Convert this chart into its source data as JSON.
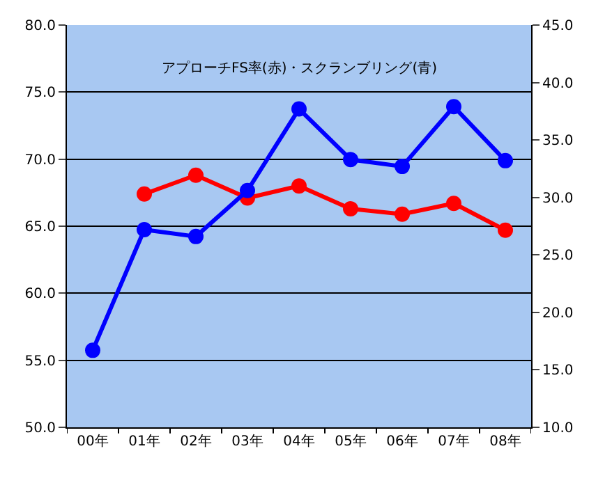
{
  "chart_data": {
    "type": "line",
    "title": "アプローチFS率(赤)・スクランブリング(青)",
    "categories": [
      "00年",
      "01年",
      "02年",
      "03年",
      "04年",
      "05年",
      "06年",
      "07年",
      "08年"
    ],
    "series": [
      {
        "color": "#ff0000",
        "values": [
          null,
          67.4,
          68.8,
          67.1,
          68.0,
          66.3,
          65.9,
          66.7,
          64.7
        ]
      },
      {
        "color": "#0000ff",
        "axis": "y2",
        "values": [
          16.7,
          27.2,
          26.6,
          30.6,
          37.7,
          33.3,
          32.7,
          37.9,
          33.2
        ]
      }
    ],
    "ylim": [
      50,
      80
    ],
    "yticks": [
      {
        "value": 50,
        "label": "50.0"
      },
      {
        "value": 55,
        "label": "55.0"
      },
      {
        "value": 60,
        "label": "60.0"
      },
      {
        "value": 65,
        "label": "65.0"
      },
      {
        "value": 70,
        "label": "70.0"
      },
      {
        "value": 75,
        "label": "75.0"
      },
      {
        "value": 80,
        "label": "80.0"
      }
    ],
    "y2lim": [
      10,
      45
    ],
    "y2ticks": [
      {
        "value": 10,
        "label": "10.0"
      },
      {
        "value": 15,
        "label": "15.0"
      },
      {
        "value": 20,
        "label": "20.0"
      },
      {
        "value": 25,
        "label": "25.0"
      },
      {
        "value": 30,
        "label": "30.0"
      },
      {
        "value": 35,
        "label": "35.0"
      },
      {
        "value": 40,
        "label": "40.0"
      },
      {
        "value": 45,
        "label": "45.0"
      }
    ],
    "grid": "y",
    "marker": "circle",
    "line_style": "solid"
  }
}
